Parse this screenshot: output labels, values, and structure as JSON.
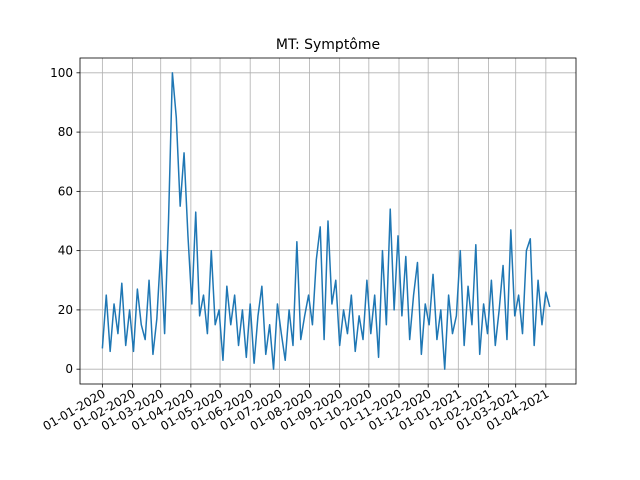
{
  "chart_data": {
    "type": "line",
    "title": "MT: Symptôme",
    "x": [
      "2020-01-01",
      "2020-01-05",
      "2020-01-09",
      "2020-01-13",
      "2020-01-17",
      "2020-01-21",
      "2020-01-25",
      "2020-01-29",
      "2020-02-02",
      "2020-02-06",
      "2020-02-10",
      "2020-02-14",
      "2020-02-18",
      "2020-02-22",
      "2020-02-26",
      "2020-03-01",
      "2020-03-05",
      "2020-03-09",
      "2020-03-13",
      "2020-03-17",
      "2020-03-21",
      "2020-03-25",
      "2020-03-29",
      "2020-04-02",
      "2020-04-06",
      "2020-04-10",
      "2020-04-14",
      "2020-04-18",
      "2020-04-22",
      "2020-04-26",
      "2020-04-30",
      "2020-05-04",
      "2020-05-08",
      "2020-05-12",
      "2020-05-16",
      "2020-05-20",
      "2020-05-24",
      "2020-05-28",
      "2020-06-01",
      "2020-06-05",
      "2020-06-09",
      "2020-06-13",
      "2020-06-17",
      "2020-06-21",
      "2020-06-25",
      "2020-06-29",
      "2020-07-03",
      "2020-07-07",
      "2020-07-11",
      "2020-07-15",
      "2020-07-19",
      "2020-07-23",
      "2020-07-27",
      "2020-07-31",
      "2020-08-04",
      "2020-08-08",
      "2020-08-12",
      "2020-08-16",
      "2020-08-20",
      "2020-08-24",
      "2020-08-28",
      "2020-09-01",
      "2020-09-05",
      "2020-09-09",
      "2020-09-13",
      "2020-09-17",
      "2020-09-21",
      "2020-09-25",
      "2020-09-29",
      "2020-10-03",
      "2020-10-07",
      "2020-10-11",
      "2020-10-15",
      "2020-10-19",
      "2020-10-23",
      "2020-10-27",
      "2020-10-31",
      "2020-11-04",
      "2020-11-08",
      "2020-11-12",
      "2020-11-16",
      "2020-11-20",
      "2020-11-24",
      "2020-11-28",
      "2020-12-02",
      "2020-12-06",
      "2020-12-10",
      "2020-12-14",
      "2020-12-18",
      "2020-12-22",
      "2020-12-26",
      "2020-12-30",
      "2021-01-03",
      "2021-01-07",
      "2021-01-11",
      "2021-01-15",
      "2021-01-19",
      "2021-01-23",
      "2021-01-27",
      "2021-01-31",
      "2021-02-04",
      "2021-02-08",
      "2021-02-12",
      "2021-02-16",
      "2021-02-20",
      "2021-02-24",
      "2021-02-28",
      "2021-03-04",
      "2021-03-08",
      "2021-03-12",
      "2021-03-16",
      "2021-03-20",
      "2021-03-24",
      "2021-03-28",
      "2021-04-01",
      "2021-04-05"
    ],
    "series": [
      {
        "name": "MT",
        "color": "#1f77b4",
        "values": [
          7,
          25,
          6,
          22,
          12,
          29,
          8,
          20,
          6,
          27,
          15,
          10,
          30,
          5,
          17,
          40,
          12,
          50,
          100,
          85,
          55,
          73,
          45,
          22,
          53,
          18,
          25,
          12,
          40,
          15,
          20,
          3,
          28,
          15,
          25,
          8,
          20,
          4,
          22,
          2,
          18,
          28,
          5,
          15,
          0,
          22,
          12,
          3,
          20,
          8,
          43,
          10,
          18,
          25,
          15,
          37,
          48,
          10,
          50,
          22,
          30,
          8,
          20,
          12,
          25,
          6,
          18,
          10,
          30,
          12,
          25,
          4,
          40,
          15,
          54,
          20,
          45,
          18,
          38,
          10,
          25,
          36,
          5,
          22,
          15,
          32,
          10,
          20,
          0,
          25,
          12,
          18,
          40,
          8,
          28,
          15,
          42,
          5,
          22,
          12,
          30,
          8,
          20,
          35,
          10,
          47,
          18,
          25,
          12,
          40,
          44,
          8,
          30,
          15,
          26,
          21
        ]
      }
    ],
    "xlim": [
      "2019-12-09",
      "2021-05-02"
    ],
    "xticks": [
      {
        "value": "2020-01-01",
        "label": "01-01-2020"
      },
      {
        "value": "2020-02-01",
        "label": "01-02-2020"
      },
      {
        "value": "2020-03-01",
        "label": "01-03-2020"
      },
      {
        "value": "2020-04-01",
        "label": "01-04-2020"
      },
      {
        "value": "2020-05-01",
        "label": "01-05-2020"
      },
      {
        "value": "2020-06-01",
        "label": "01-06-2020"
      },
      {
        "value": "2020-07-01",
        "label": "01-07-2020"
      },
      {
        "value": "2020-08-01",
        "label": "01-08-2020"
      },
      {
        "value": "2020-09-01",
        "label": "01-09-2020"
      },
      {
        "value": "2020-10-01",
        "label": "01-10-2020"
      },
      {
        "value": "2020-11-01",
        "label": "01-11-2020"
      },
      {
        "value": "2020-12-01",
        "label": "01-12-2020"
      },
      {
        "value": "2021-01-01",
        "label": "01-01-2021"
      },
      {
        "value": "2021-02-01",
        "label": "01-02-2021"
      },
      {
        "value": "2021-03-01",
        "label": "01-03-2021"
      },
      {
        "value": "2021-04-01",
        "label": "01-04-2021"
      }
    ],
    "ylim": [
      -5,
      105
    ],
    "yticks": [
      0,
      20,
      40,
      60,
      80,
      100
    ],
    "grid": true
  }
}
